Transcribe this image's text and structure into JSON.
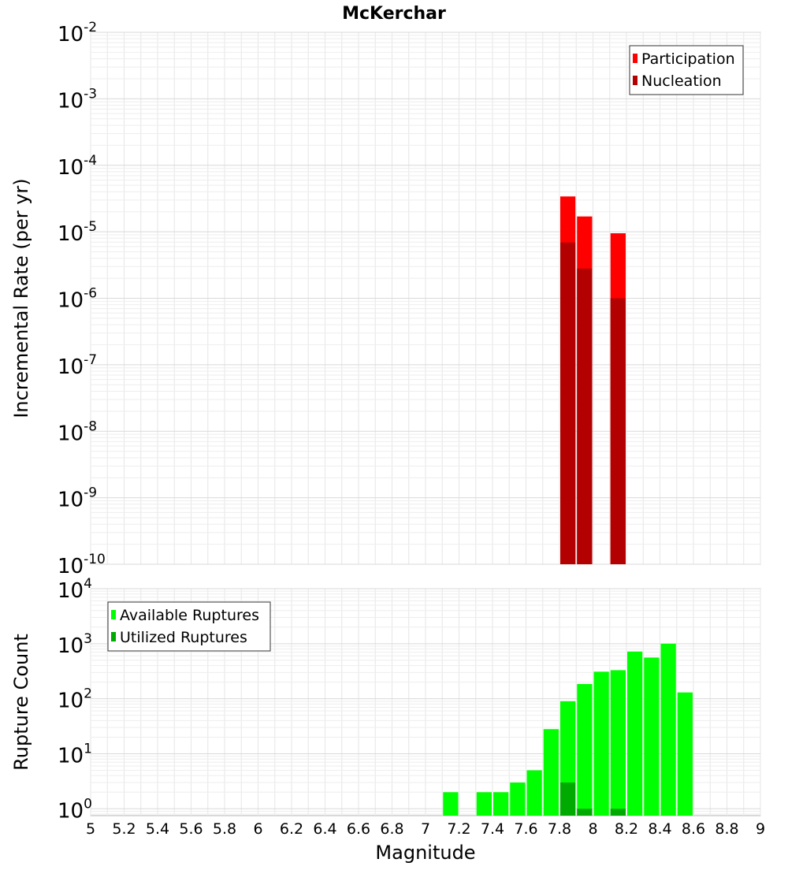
{
  "title": "McKerchar",
  "xlabel": "Magnitude",
  "x_ticks": [
    "5",
    "5.2",
    "5.4",
    "5.6",
    "5.8",
    "6",
    "6.2",
    "6.4",
    "6.6",
    "6.8",
    "7",
    "7.2",
    "7.4",
    "7.6",
    "7.8",
    "8",
    "8.2",
    "8.4",
    "8.6",
    "8.8",
    "9"
  ],
  "colors": {
    "participation": "#ff0000",
    "nucleation": "#b30000",
    "available": "#00ff00",
    "utilized": "#00aa00",
    "grid": "#e6e6e6",
    "frame": "#b3b3b3"
  },
  "chart_data": [
    {
      "type": "bar",
      "title": "McKerchar",
      "xlabel": "Magnitude",
      "ylabel": "Incremental Rate (per yr)",
      "xlim": [
        5,
        9
      ],
      "ylim": [
        1e-10,
        0.01
      ],
      "yscale": "log",
      "grid": true,
      "legend_position": "top-right",
      "y_tick_exponents": [
        "-2",
        "-3",
        "-4",
        "-5",
        "-6",
        "-7",
        "-8",
        "-9",
        "-10"
      ],
      "bin_width": 0.1,
      "series": [
        {
          "name": "Participation",
          "x": [
            7.85,
            7.95,
            8.15
          ],
          "values": [
            3.4e-05,
            1.7e-05,
            9.5e-06
          ]
        },
        {
          "name": "Nucleation",
          "x": [
            7.85,
            7.95,
            8.15
          ],
          "values": [
            6.9e-06,
            2.8e-06,
            1e-06
          ]
        }
      ]
    },
    {
      "type": "bar",
      "xlabel": "Magnitude",
      "ylabel": "Rupture Count",
      "xlim": [
        5,
        9
      ],
      "ylim": [
        0.75,
        10000
      ],
      "yscale": "log",
      "grid": true,
      "legend_position": "top-left",
      "y_tick_exponents": [
        "4",
        "3",
        "2",
        "1",
        "0"
      ],
      "bin_width": 0.1,
      "series": [
        {
          "name": "Available Ruptures",
          "x": [
            7.15,
            7.35,
            7.45,
            7.55,
            7.65,
            7.75,
            7.85,
            7.95,
            8.05,
            8.15,
            8.25,
            8.35,
            8.45,
            8.55
          ],
          "values": [
            2,
            2,
            2,
            3,
            5,
            28,
            90,
            185,
            310,
            330,
            720,
            560,
            1000,
            130
          ]
        },
        {
          "name": "Utilized Ruptures",
          "x": [
            7.85,
            7.95,
            8.15
          ],
          "values": [
            3,
            1,
            1
          ]
        }
      ]
    }
  ]
}
